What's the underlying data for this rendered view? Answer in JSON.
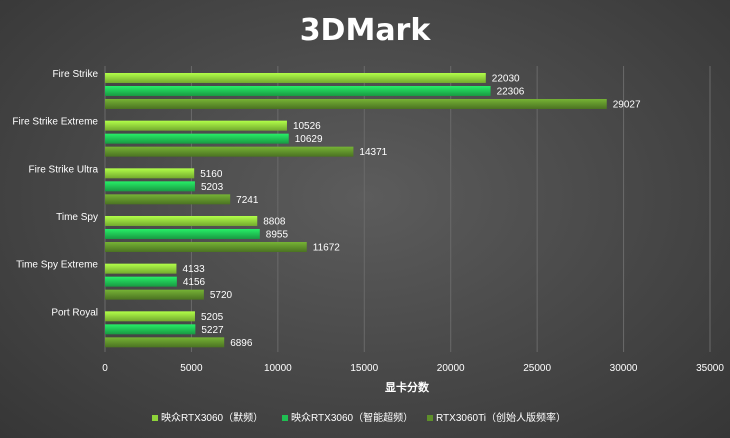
{
  "chart_data": {
    "type": "bar",
    "orientation": "horizontal",
    "title": "3DMark",
    "xlabel": "显卡分数",
    "ylabel": "",
    "xlim": [
      0,
      35000
    ],
    "xticks": [
      0,
      5000,
      10000,
      15000,
      20000,
      25000,
      30000,
      35000
    ],
    "grid": true,
    "legend_position": "bottom",
    "categories": [
      "Fire Strike",
      "Fire Strike Extreme",
      "Fire Strike Ultra",
      "Time Spy",
      "Time Spy Extreme",
      "Port Royal"
    ],
    "series": [
      {
        "name": "映众RTX3060（默频）",
        "color": "#8ed33a",
        "values": [
          22030,
          10526,
          5160,
          8808,
          4133,
          5205
        ]
      },
      {
        "name": "映众RTX3060（智能超频）",
        "color": "#1fbf52",
        "values": [
          22306,
          10629,
          5203,
          8955,
          4156,
          5227
        ]
      },
      {
        "name": "RTX3060Ti（创始人版频率）",
        "color": "#5e8f2a",
        "values": [
          29027,
          14371,
          7241,
          11672,
          5720,
          6896
        ]
      }
    ]
  }
}
